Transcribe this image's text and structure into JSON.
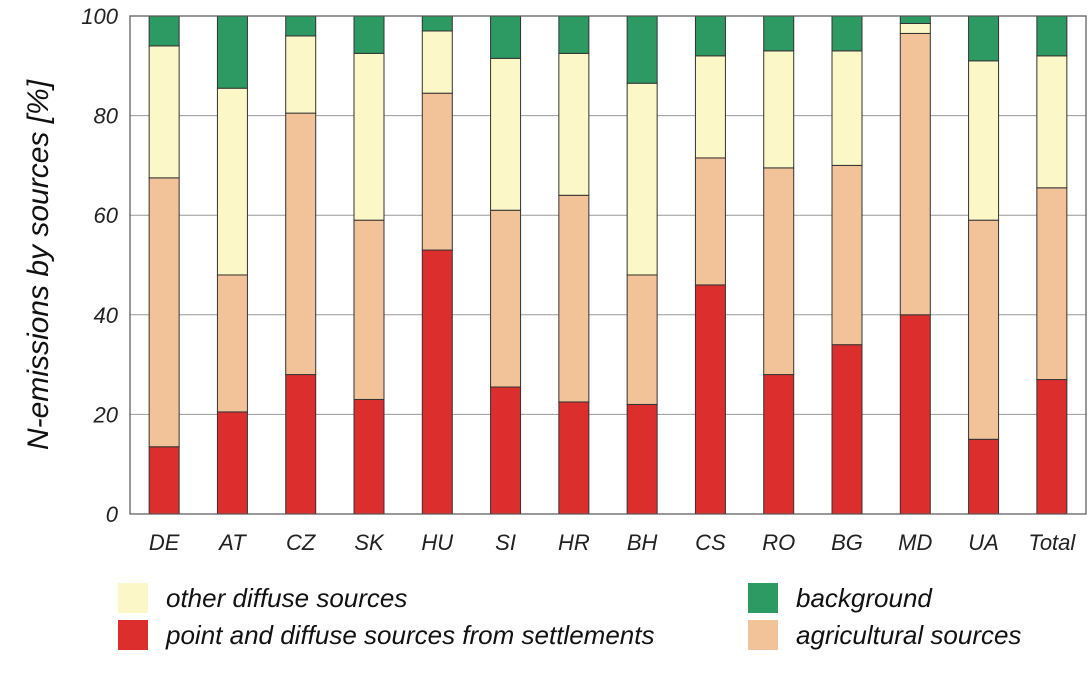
{
  "chart_data": {
    "type": "bar",
    "stacked": true,
    "ylabel": "N-emissions by sources [%]",
    "xlabel": "",
    "ylim": [
      0,
      100
    ],
    "yticks": [
      0,
      20,
      40,
      60,
      80,
      100
    ],
    "grid": true,
    "categories": [
      "DE",
      "AT",
      "CZ",
      "SK",
      "HU",
      "SI",
      "HR",
      "BH",
      "CS",
      "RO",
      "BG",
      "MD",
      "UA",
      "Total"
    ],
    "series": [
      {
        "name": "point and diffuse sources from settlements",
        "color": "#dd2e2e",
        "values": [
          13.5,
          20.5,
          28,
          23,
          53,
          25.5,
          22.5,
          22,
          46,
          28,
          34,
          40,
          15,
          27
        ]
      },
      {
        "name": "agricultural sources",
        "color": "#f2c299",
        "values": [
          54,
          27.5,
          52.5,
          36,
          31.5,
          35.5,
          41.5,
          26,
          25.5,
          41.5,
          36,
          56.5,
          44,
          38.5
        ]
      },
      {
        "name": "other diffuse sources",
        "color": "#fcf7c6",
        "values": [
          26.5,
          37.5,
          15.5,
          33.5,
          12.5,
          30.5,
          28.5,
          38.5,
          20.5,
          23.5,
          23,
          2,
          32,
          26.5
        ]
      },
      {
        "name": "background",
        "color": "#2c9a62",
        "values": [
          6,
          14.5,
          4,
          7.5,
          3,
          8.5,
          7.5,
          13.5,
          8,
          7,
          7,
          1.5,
          9,
          8
        ]
      }
    ],
    "legend": {
      "placement": "bottom",
      "order": [
        2,
        3,
        0,
        1
      ]
    }
  }
}
